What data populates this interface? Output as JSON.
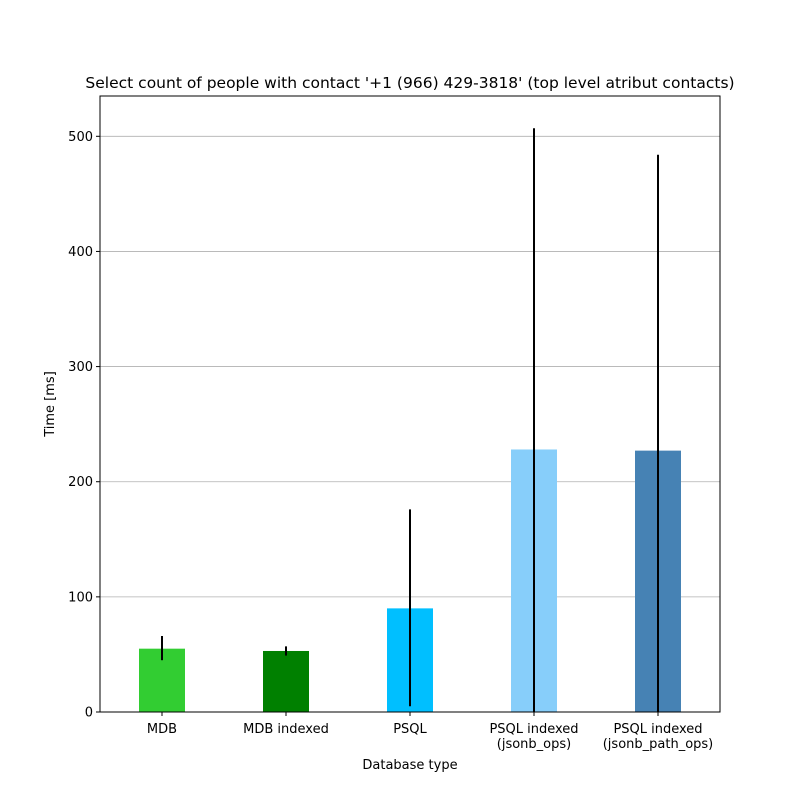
{
  "chart_data": {
    "type": "bar",
    "title": "Select count of people with contact '+1 (966) 429-3818' (top level atribut contacts)",
    "xlabel": "Database type",
    "ylabel": "Time [ms]",
    "ylim": [
      0,
      535
    ],
    "yticks": [
      0,
      100,
      200,
      300,
      400,
      500
    ],
    "grid": "horizontal",
    "categories": [
      [
        "MDB"
      ],
      [
        "MDB indexed"
      ],
      [
        "PSQL"
      ],
      [
        "PSQL indexed",
        "(jsonb_ops)"
      ],
      [
        "PSQL indexed",
        "(jsonb_path_ops)"
      ]
    ],
    "values": [
      55,
      53,
      90,
      228,
      227
    ],
    "errors": [
      [
        45,
        66
      ],
      [
        49,
        57
      ],
      [
        5,
        176
      ],
      [
        0,
        507
      ],
      [
        0,
        484
      ]
    ],
    "colors": [
      "#32cd32",
      "#008000",
      "#00bfff",
      "#87cefa",
      "#4682b4"
    ]
  }
}
